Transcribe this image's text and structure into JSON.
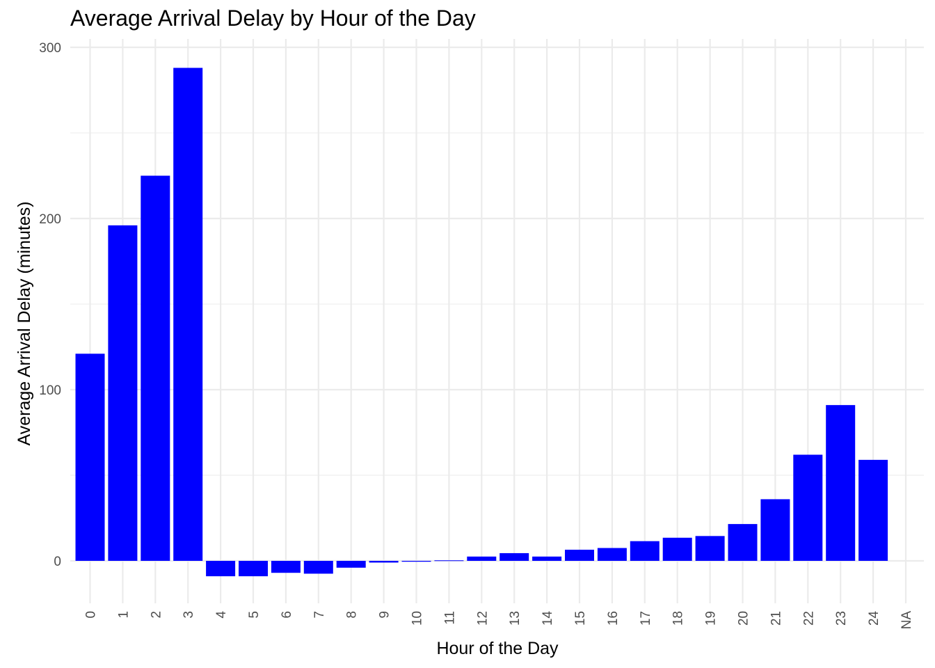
{
  "chart_data": {
    "type": "bar",
    "title": "Average Arrival Delay by Hour of the Day",
    "xlabel": "Hour of the Day",
    "ylabel": "Average Arrival Delay (minutes)",
    "categories": [
      "0",
      "1",
      "2",
      "3",
      "4",
      "5",
      "6",
      "7",
      "8",
      "9",
      "10",
      "11",
      "12",
      "13",
      "14",
      "15",
      "16",
      "17",
      "18",
      "19",
      "20",
      "21",
      "22",
      "23",
      "24",
      "NA"
    ],
    "values": [
      121,
      196,
      225,
      288,
      -9,
      -9,
      -7,
      -7.5,
      -4,
      -1,
      -0.5,
      0.3,
      2.5,
      4.5,
      2.5,
      6.5,
      7.5,
      11.5,
      13.5,
      14.5,
      21.5,
      36,
      62,
      91,
      59,
      null
    ],
    "yticks": [
      0,
      100,
      200,
      300
    ],
    "ylim": [
      -25.5,
      300
    ],
    "grid": true,
    "bar_color": "#0000FF",
    "grid_color": "#EBEBEB"
  }
}
